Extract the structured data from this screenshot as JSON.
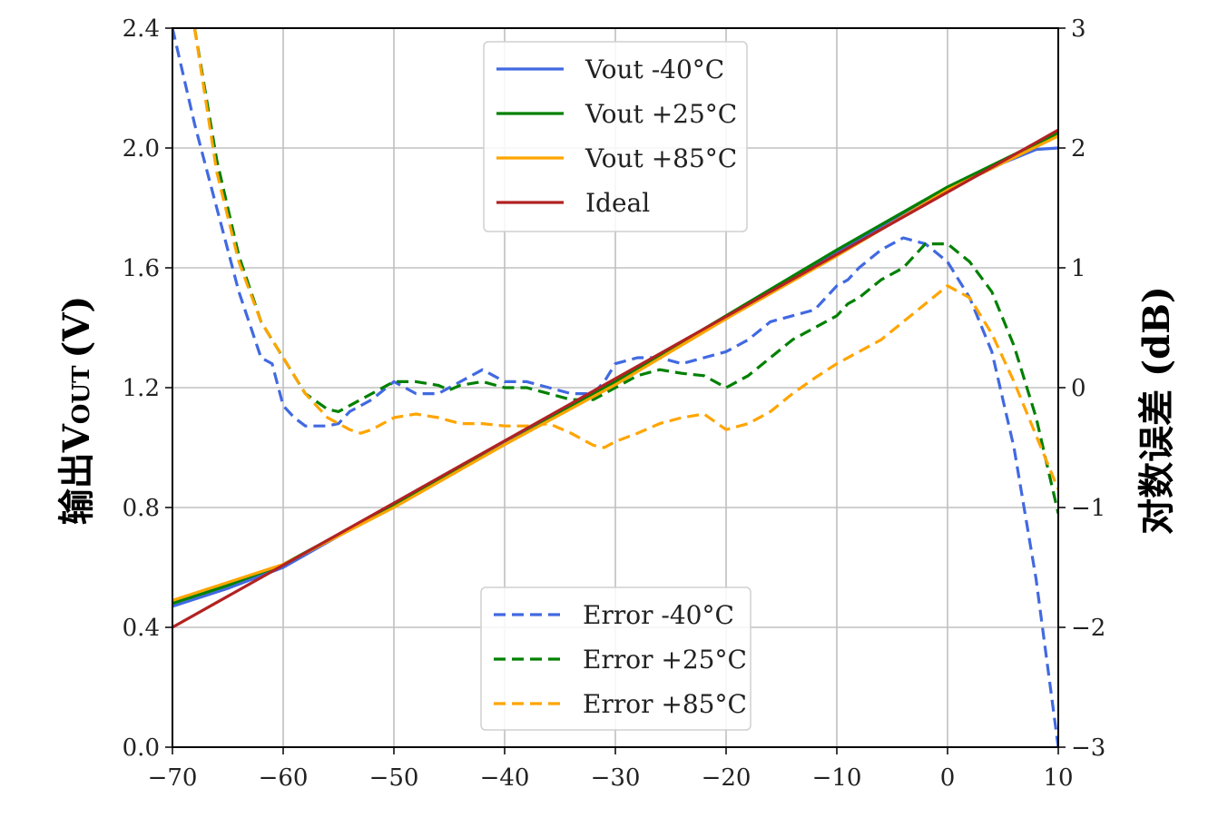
{
  "chart_data": {
    "type": "line",
    "title": "",
    "xlabel": "",
    "ylabel_left": "输出V",
    "ylabel_left_sub": "OUT",
    "ylabel_left_unit": "(V)",
    "ylabel_right": "对数误差",
    "ylabel_right_unit": "(dB)",
    "xlim": [
      -70,
      10
    ],
    "ylim_left": [
      0.0,
      2.4
    ],
    "ylim_right": [
      -3,
      3
    ],
    "grid": true,
    "x_ticks": [
      -70,
      -60,
      -50,
      -40,
      -30,
      -20,
      -10,
      0,
      10
    ],
    "x_tick_labels": [
      "−70",
      "−60",
      "−50",
      "−40",
      "−30",
      "−20",
      "−10",
      "0",
      "10"
    ],
    "y_left_ticks": [
      0.0,
      0.4,
      0.8,
      1.2,
      1.6,
      2.0,
      2.4
    ],
    "y_left_tick_labels": [
      "0.0",
      "0.4",
      "0.8",
      "1.2",
      "1.6",
      "2.0",
      "2.4"
    ],
    "y_right_ticks": [
      -3,
      -2,
      -1,
      0,
      1,
      2,
      3
    ],
    "y_right_tick_labels": [
      "−3",
      "−2",
      "−1",
      "0",
      "1",
      "2",
      "3"
    ],
    "legend_top": {
      "placement": "top-center",
      "entries": [
        "Vout  -40°C",
        "Vout +25°C",
        "Vout +85°C",
        "Ideal"
      ]
    },
    "legend_bottom": {
      "placement": "bottom-center",
      "entries": [
        "Error  -40°C",
        "Error +25°C",
        "Error +85°C"
      ]
    },
    "series": [
      {
        "name": "Vout  -40°C",
        "axis": "left",
        "style": "solid",
        "color": "#4169E1",
        "x": [
          -70,
          -65,
          -60,
          -50,
          -40,
          -30,
          -20,
          -10,
          0,
          5,
          8,
          10
        ],
        "y": [
          0.47,
          0.53,
          0.6,
          0.81,
          1.02,
          1.22,
          1.43,
          1.65,
          1.86,
          1.95,
          1.995,
          2.0
        ]
      },
      {
        "name": "Vout +25°C",
        "axis": "left",
        "style": "solid",
        "color": "#008000",
        "x": [
          -70,
          -65,
          -60,
          -50,
          -40,
          -30,
          -20,
          -10,
          0,
          10
        ],
        "y": [
          0.48,
          0.54,
          0.61,
          0.81,
          1.01,
          1.22,
          1.44,
          1.66,
          1.87,
          2.05
        ]
      },
      {
        "name": "Vout +85°C",
        "axis": "left",
        "style": "solid",
        "color": "#FFA500",
        "x": [
          -70,
          -65,
          -60,
          -50,
          -40,
          -30,
          -20,
          -10,
          0,
          10
        ],
        "y": [
          0.49,
          0.55,
          0.61,
          0.8,
          1.01,
          1.21,
          1.43,
          1.64,
          1.86,
          2.04
        ]
      },
      {
        "name": "Ideal",
        "axis": "left",
        "style": "solid",
        "color": "#B22222",
        "x": [
          -70,
          10
        ],
        "y": [
          0.4,
          2.06
        ]
      },
      {
        "name": "Error  -40°C",
        "axis": "right",
        "style": "dashed",
        "color": "#4169E1",
        "x": [
          -70,
          -68,
          -66,
          -64,
          -62,
          -61,
          -60,
          -59,
          -58,
          -57,
          -56,
          -55,
          -54,
          -52,
          -50,
          -48,
          -46,
          -44,
          -42,
          -41,
          -40,
          -38,
          -36,
          -34,
          -32,
          -31,
          -30,
          -28,
          -26,
          -24,
          -22,
          -20,
          -18,
          -16,
          -14,
          -12,
          -10,
          -9,
          -8,
          -6,
          -4,
          -2,
          0,
          2,
          4,
          6,
          8,
          9,
          10
        ],
        "y": [
          3.0,
          2.2,
          1.5,
          0.8,
          0.25,
          0.2,
          -0.15,
          -0.25,
          -0.32,
          -0.32,
          -0.32,
          -0.3,
          -0.2,
          -0.1,
          0.05,
          -0.05,
          -0.05,
          0.05,
          0.15,
          0.1,
          0.05,
          0.05,
          0.0,
          -0.05,
          -0.05,
          0.05,
          0.2,
          0.25,
          0.25,
          0.2,
          0.25,
          0.3,
          0.4,
          0.55,
          0.6,
          0.65,
          0.85,
          0.9,
          1.0,
          1.15,
          1.25,
          1.2,
          1.05,
          0.75,
          0.3,
          -0.5,
          -1.6,
          -2.3,
          -3.0
        ]
      },
      {
        "name": "Error +25°C",
        "axis": "right",
        "style": "dashed",
        "color": "#008000",
        "x": [
          -68,
          -66,
          -64,
          -62,
          -60,
          -58,
          -56,
          -55,
          -54,
          -52,
          -50,
          -48,
          -46,
          -45,
          -44,
          -42,
          -40,
          -38,
          -36,
          -34,
          -33,
          -32,
          -30,
          -28,
          -26,
          -24,
          -22,
          -20,
          -18,
          -16,
          -14,
          -12,
          -10,
          -9,
          -8,
          -6,
          -4,
          -2,
          0,
          2,
          4,
          6,
          8,
          10
        ],
        "y": [
          3.0,
          1.9,
          1.1,
          0.55,
          0.25,
          -0.05,
          -0.18,
          -0.2,
          -0.15,
          -0.05,
          0.05,
          0.05,
          0.02,
          -0.02,
          0.02,
          0.05,
          0.0,
          0.0,
          -0.05,
          -0.1,
          -0.1,
          -0.1,
          0.0,
          0.1,
          0.15,
          0.12,
          0.1,
          0.0,
          0.1,
          0.25,
          0.4,
          0.5,
          0.6,
          0.7,
          0.75,
          0.9,
          1.0,
          1.2,
          1.2,
          1.05,
          0.8,
          0.35,
          -0.25,
          -1.05
        ]
      },
      {
        "name": "Error +85°C",
        "axis": "right",
        "style": "dashed",
        "color": "#FFA500",
        "x": [
          -68,
          -66,
          -64,
          -62,
          -60,
          -58,
          -57,
          -56,
          -55,
          -54,
          -53,
          -52,
          -50,
          -48,
          -46,
          -44,
          -42,
          -40,
          -39,
          -38,
          -36,
          -34,
          -32,
          -31,
          -30,
          -28,
          -26,
          -24,
          -22,
          -20,
          -18,
          -16,
          -14,
          -12,
          -10,
          -8,
          -6,
          -4,
          -2,
          0,
          2,
          4,
          6,
          8,
          10
        ],
        "y": [
          3.0,
          1.8,
          1.05,
          0.55,
          0.25,
          -0.05,
          -0.15,
          -0.25,
          -0.3,
          -0.35,
          -0.38,
          -0.35,
          -0.25,
          -0.22,
          -0.25,
          -0.3,
          -0.3,
          -0.32,
          -0.32,
          -0.32,
          -0.3,
          -0.38,
          -0.48,
          -0.5,
          -0.45,
          -0.38,
          -0.3,
          -0.25,
          -0.22,
          -0.35,
          -0.3,
          -0.2,
          -0.05,
          0.08,
          0.2,
          0.3,
          0.4,
          0.55,
          0.7,
          0.85,
          0.75,
          0.45,
          0.05,
          -0.4,
          -0.85
        ]
      }
    ]
  }
}
